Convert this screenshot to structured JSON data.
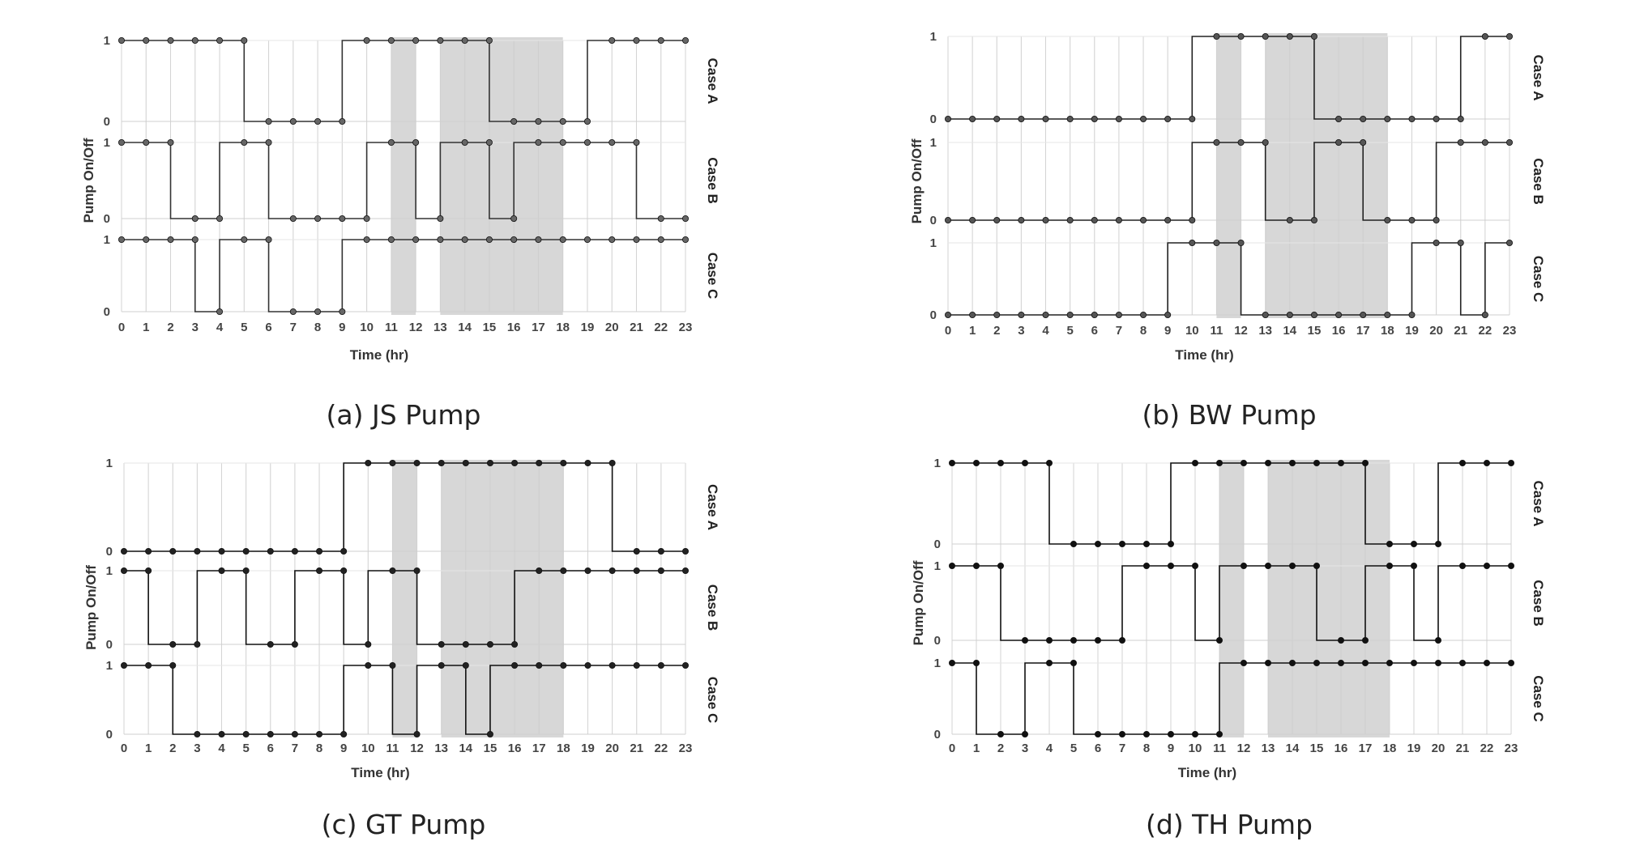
{
  "chart_data": [
    {
      "type": "line",
      "caption": "(a) JS Pump",
      "xlabel": "Time (hr)",
      "ylabel": "Pump On/Off",
      "x": [
        0,
        1,
        2,
        3,
        4,
        5,
        6,
        7,
        8,
        9,
        10,
        11,
        12,
        13,
        14,
        15,
        16,
        17,
        18,
        19,
        20,
        21,
        22,
        23
      ],
      "ylim": [
        0,
        1
      ],
      "shaded_intervals": [
        [
          11,
          12
        ],
        [
          13,
          18
        ]
      ],
      "series": [
        {
          "name": "Case A",
          "values": [
            1,
            1,
            1,
            1,
            1,
            1,
            0,
            0,
            0,
            0,
            1,
            1,
            1,
            1,
            1,
            1,
            0,
            0,
            0,
            0,
            1,
            1,
            1,
            1
          ]
        },
        {
          "name": "Case B",
          "values": [
            1,
            1,
            1,
            0,
            0,
            1,
            1,
            0,
            0,
            0,
            0,
            1,
            1,
            0,
            1,
            1,
            0,
            1,
            1,
            1,
            1,
            1,
            0,
            0
          ]
        },
        {
          "name": "Case C",
          "values": [
            1,
            1,
            1,
            1,
            0,
            1,
            1,
            0,
            0,
            0,
            1,
            1,
            1,
            1,
            1,
            1,
            1,
            1,
            1,
            1,
            1,
            1,
            1,
            1
          ]
        }
      ]
    },
    {
      "type": "line",
      "caption": "(b) BW Pump",
      "xlabel": "Time (hr)",
      "ylabel": "Pump On/Off",
      "x": [
        0,
        1,
        2,
        3,
        4,
        5,
        6,
        7,
        8,
        9,
        10,
        11,
        12,
        13,
        14,
        15,
        16,
        17,
        18,
        19,
        20,
        21,
        22,
        23
      ],
      "ylim": [
        0,
        1
      ],
      "shaded_intervals": [
        [
          11,
          12
        ],
        [
          13,
          18
        ]
      ],
      "series": [
        {
          "name": "Case A",
          "values": [
            0,
            0,
            0,
            0,
            0,
            0,
            0,
            0,
            0,
            0,
            0,
            1,
            1,
            1,
            1,
            1,
            0,
            0,
            0,
            0,
            0,
            0,
            1,
            1
          ]
        },
        {
          "name": "Case B",
          "values": [
            0,
            0,
            0,
            0,
            0,
            0,
            0,
            0,
            0,
            0,
            0,
            1,
            1,
            1,
            0,
            0,
            1,
            1,
            0,
            0,
            0,
            1,
            1,
            1
          ]
        },
        {
          "name": "Case C",
          "values": [
            0,
            0,
            0,
            0,
            0,
            0,
            0,
            0,
            0,
            0,
            1,
            1,
            1,
            0,
            0,
            0,
            0,
            0,
            0,
            0,
            1,
            1,
            0,
            1
          ]
        }
      ]
    },
    {
      "type": "line",
      "caption": "(c) GT Pump",
      "xlabel": "Time (hr)",
      "ylabel": "Pump On/Off",
      "x": [
        0,
        1,
        2,
        3,
        4,
        5,
        6,
        7,
        8,
        9,
        10,
        11,
        12,
        13,
        14,
        15,
        16,
        17,
        18,
        19,
        20,
        21,
        22,
        23
      ],
      "ylim": [
        0,
        1
      ],
      "shaded_intervals": [
        [
          11,
          12
        ],
        [
          13,
          18
        ]
      ],
      "series": [
        {
          "name": "Case A",
          "values": [
            0,
            0,
            0,
            0,
            0,
            0,
            0,
            0,
            0,
            0,
            1,
            1,
            1,
            1,
            1,
            1,
            1,
            1,
            1,
            1,
            1,
            0,
            0,
            0
          ]
        },
        {
          "name": "Case B",
          "values": [
            1,
            1,
            0,
            0,
            1,
            1,
            0,
            0,
            1,
            1,
            0,
            1,
            1,
            0,
            0,
            0,
            0,
            1,
            1,
            1,
            1,
            1,
            1,
            1
          ]
        },
        {
          "name": "Case C",
          "values": [
            1,
            1,
            1,
            0,
            0,
            0,
            0,
            0,
            0,
            0,
            1,
            1,
            0,
            1,
            1,
            0,
            1,
            1,
            1,
            1,
            1,
            1,
            1,
            1
          ]
        }
      ]
    },
    {
      "type": "line",
      "caption": "(d) TH Pump",
      "xlabel": "Time (hr)",
      "ylabel": "Pump On/Off",
      "x": [
        0,
        1,
        2,
        3,
        4,
        5,
        6,
        7,
        8,
        9,
        10,
        11,
        12,
        13,
        14,
        15,
        16,
        17,
        18,
        19,
        20,
        21,
        22,
        23
      ],
      "ylim": [
        0,
        1
      ],
      "shaded_intervals": [
        [
          11,
          12
        ],
        [
          13,
          18
        ]
      ],
      "series": [
        {
          "name": "Case A",
          "values": [
            1,
            1,
            1,
            1,
            1,
            0,
            0,
            0,
            0,
            0,
            1,
            1,
            1,
            1,
            1,
            1,
            1,
            1,
            0,
            0,
            0,
            1,
            1,
            1
          ]
        },
        {
          "name": "Case B",
          "values": [
            1,
            1,
            1,
            0,
            0,
            0,
            0,
            0,
            1,
            1,
            1,
            0,
            1,
            1,
            1,
            1,
            0,
            0,
            1,
            1,
            0,
            1,
            1,
            1
          ]
        },
        {
          "name": "Case C",
          "values": [
            1,
            1,
            0,
            0,
            1,
            1,
            0,
            0,
            0,
            0,
            0,
            0,
            1,
            1,
            1,
            1,
            1,
            1,
            1,
            1,
            1,
            1,
            1,
            1
          ]
        }
      ]
    }
  ]
}
